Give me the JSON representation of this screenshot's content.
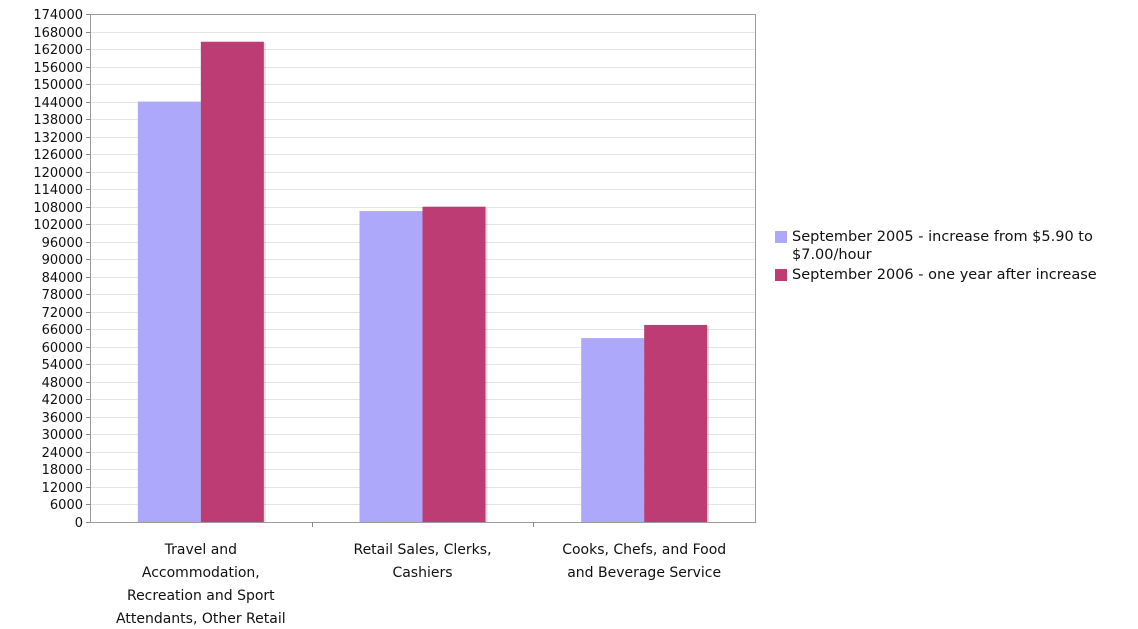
{
  "chart_data": {
    "type": "bar",
    "title": "",
    "xlabel": "",
    "ylabel": "",
    "categories": [
      "Travel and Accommodation, Recreation and Sport Attendants, Other Retail",
      "Retail Sales, Clerks, Cashiers",
      "Cooks, Chefs, and Food and Beverage Service"
    ],
    "category_label_lines": [
      [
        "Travel and",
        "Accommodation,",
        "Recreation and Sport",
        "Attendants, Other Retail"
      ],
      [
        "Retail Sales, Clerks,",
        "Cashiers"
      ],
      [
        "Cooks, Chefs, and Food",
        "and Beverage Service"
      ]
    ],
    "series": [
      {
        "name": "September 2005 - increase from $5.90 to $7.00/hour",
        "color": "#aea8fb",
        "values": [
          144000,
          106500,
          63000
        ]
      },
      {
        "name": "September 2006 - one year after increase",
        "color": "#bd3c73",
        "values": [
          164500,
          108000,
          67500
        ]
      }
    ],
    "ylim": [
      0,
      174000
    ],
    "yticks": [
      0,
      6000,
      12000,
      18000,
      24000,
      30000,
      36000,
      42000,
      48000,
      54000,
      60000,
      66000,
      72000,
      78000,
      84000,
      90000,
      96000,
      102000,
      108000,
      114000,
      120000,
      126000,
      132000,
      138000,
      144000,
      150000,
      156000,
      162000,
      168000,
      174000
    ],
    "grid": true,
    "legend_position": "right"
  },
  "legend": {
    "items": [
      {
        "label": "September 2005 - increase from $5.90 to $7.00/hour",
        "color": "#aea8fb"
      },
      {
        "label": "September 2006 - one year after increase",
        "color": "#bd3c73"
      }
    ]
  }
}
